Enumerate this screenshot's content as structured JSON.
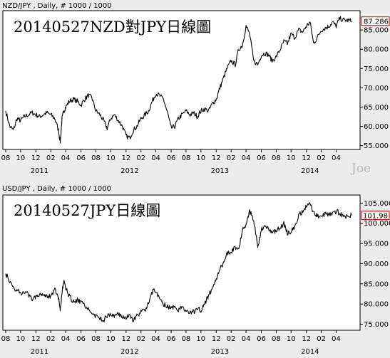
{
  "watermark": "Joe",
  "chart_data": [
    {
      "type": "line",
      "header": "NZD/JPY , Daily, # 1000 / 1000",
      "title": "20140527NZD對JPY日線圖",
      "last_value": "87.286",
      "last_color": "#cc0000",
      "ylim": [
        54,
        90
      ],
      "y_ticks": [
        55,
        60,
        65,
        70,
        75,
        80,
        85
      ],
      "y_tick_labels": [
        "55.000",
        "60.000",
        "65.000",
        "70.000",
        "75.000",
        "80.000",
        "85.000"
      ],
      "x_range": [
        2010.625,
        2014.46
      ],
      "month_ticks": [
        {
          "x": 2010.625,
          "label": "08"
        },
        {
          "x": 2010.79,
          "label": "10"
        },
        {
          "x": 2010.96,
          "label": "12"
        },
        {
          "x": 2011.125,
          "label": "02"
        },
        {
          "x": 2011.29,
          "label": "04"
        },
        {
          "x": 2011.46,
          "label": "06"
        },
        {
          "x": 2011.625,
          "label": "08"
        },
        {
          "x": 2011.79,
          "label": "10"
        },
        {
          "x": 2011.96,
          "label": "12"
        },
        {
          "x": 2012.125,
          "label": "02"
        },
        {
          "x": 2012.29,
          "label": "04"
        },
        {
          "x": 2012.46,
          "label": "06"
        },
        {
          "x": 2012.625,
          "label": "08"
        },
        {
          "x": 2012.79,
          "label": "10"
        },
        {
          "x": 2012.96,
          "label": "12"
        },
        {
          "x": 2013.125,
          "label": "02"
        },
        {
          "x": 2013.29,
          "label": "04"
        },
        {
          "x": 2013.46,
          "label": "06"
        },
        {
          "x": 2013.625,
          "label": "08"
        },
        {
          "x": 2013.79,
          "label": "10"
        },
        {
          "x": 2013.96,
          "label": "12"
        },
        {
          "x": 2014.125,
          "label": "02"
        },
        {
          "x": 2014.29,
          "label": "04"
        }
      ],
      "year_ticks": [
        {
          "x": 2011.0,
          "label": "2011"
        },
        {
          "x": 2012.0,
          "label": "2012"
        },
        {
          "x": 2013.0,
          "label": "2013"
        },
        {
          "x": 2014.0,
          "label": "2014"
        }
      ],
      "series": [
        {
          "x": [
            2010.625,
            2010.67,
            2010.71,
            2010.75,
            2010.79,
            2010.83,
            2010.875,
            2010.92,
            2010.96,
            2011.0,
            2011.04,
            2011.08,
            2011.125,
            2011.17,
            2011.21,
            2011.23,
            2011.25,
            2011.27,
            2011.29,
            2011.33,
            2011.375,
            2011.42,
            2011.46,
            2011.5,
            2011.54,
            2011.58,
            2011.625,
            2011.67,
            2011.71,
            2011.75,
            2011.79,
            2011.83,
            2011.875,
            2011.92,
            2011.96,
            2012.0,
            2012.04,
            2012.08,
            2012.125,
            2012.17,
            2012.21,
            2012.25,
            2012.29,
            2012.33,
            2012.375,
            2012.42,
            2012.46,
            2012.5,
            2012.54,
            2012.58,
            2012.625,
            2012.67,
            2012.71,
            2012.75,
            2012.79,
            2012.83,
            2012.875,
            2012.92,
            2012.96,
            2013.0,
            2013.04,
            2013.08,
            2013.125,
            2013.17,
            2013.21,
            2013.25,
            2013.29,
            2013.33,
            2013.375,
            2013.42,
            2013.46,
            2013.5,
            2013.54,
            2013.58,
            2013.625,
            2013.67,
            2013.71,
            2013.75,
            2013.79,
            2013.83,
            2013.875,
            2013.92,
            2013.96,
            2014.0,
            2014.04,
            2014.08,
            2014.125,
            2014.17,
            2014.21,
            2014.25,
            2014.29,
            2014.33,
            2014.375,
            2014.42,
            2014.46
          ],
          "y": [
            64,
            60,
            59,
            62,
            61.5,
            62.5,
            63,
            63.5,
            63,
            62.5,
            63,
            63.5,
            63,
            62,
            59,
            56,
            62,
            64,
            65,
            66.5,
            67,
            66.5,
            65.5,
            67,
            68,
            67.5,
            64,
            63,
            61.5,
            59.5,
            62,
            63,
            61.5,
            60,
            57.5,
            57,
            59,
            60,
            62,
            63,
            64,
            66.5,
            68.5,
            68,
            67,
            63.5,
            59.5,
            60,
            62,
            63,
            64,
            63,
            63.5,
            62.5,
            64,
            64.5,
            64,
            66,
            67,
            70,
            72.5,
            75,
            77,
            76,
            80,
            81,
            86,
            84,
            77,
            76,
            78.5,
            79,
            78.5,
            77,
            78,
            80,
            82,
            81.5,
            84,
            83,
            85,
            84.5,
            86,
            87,
            81.5,
            83,
            85,
            85.5,
            86,
            87,
            86,
            88,
            87.5,
            87.5,
            87.29
          ]
        }
      ]
    },
    {
      "type": "line",
      "header": "USD/JPY , Daily, # 1000 / 1000",
      "title": "20140527JPY日線圖",
      "last_value": "101.98",
      "last_color": "#cc0000",
      "ylim": [
        73.5,
        107
      ],
      "y_ticks": [
        75,
        80,
        85,
        90,
        95,
        100,
        105
      ],
      "y_tick_labels": [
        "75.000",
        "80.000",
        "85.000",
        "90.000",
        "95.000",
        "100.000",
        "105.000"
      ],
      "x_range": [
        2010.625,
        2014.46
      ],
      "month_ticks": [
        {
          "x": 2010.625,
          "label": "08"
        },
        {
          "x": 2010.79,
          "label": "10"
        },
        {
          "x": 2010.96,
          "label": "12"
        },
        {
          "x": 2011.125,
          "label": "02"
        },
        {
          "x": 2011.29,
          "label": "04"
        },
        {
          "x": 2011.46,
          "label": "06"
        },
        {
          "x": 2011.625,
          "label": "08"
        },
        {
          "x": 2011.79,
          "label": "10"
        },
        {
          "x": 2011.96,
          "label": "12"
        },
        {
          "x": 2012.125,
          "label": "02"
        },
        {
          "x": 2012.29,
          "label": "04"
        },
        {
          "x": 2012.46,
          "label": "06"
        },
        {
          "x": 2012.625,
          "label": "08"
        },
        {
          "x": 2012.79,
          "label": "10"
        },
        {
          "x": 2012.96,
          "label": "12"
        },
        {
          "x": 2013.125,
          "label": "02"
        },
        {
          "x": 2013.29,
          "label": "04"
        },
        {
          "x": 2013.46,
          "label": "06"
        },
        {
          "x": 2013.625,
          "label": "08"
        },
        {
          "x": 2013.79,
          "label": "10"
        },
        {
          "x": 2013.96,
          "label": "12"
        },
        {
          "x": 2014.125,
          "label": "02"
        },
        {
          "x": 2014.29,
          "label": "04"
        }
      ],
      "year_ticks": [
        {
          "x": 2011.0,
          "label": "2011"
        },
        {
          "x": 2012.0,
          "label": "2012"
        },
        {
          "x": 2013.0,
          "label": "2013"
        },
        {
          "x": 2014.0,
          "label": "2014"
        }
      ],
      "series": [
        {
          "x": [
            2010.625,
            2010.67,
            2010.71,
            2010.75,
            2010.79,
            2010.83,
            2010.875,
            2010.92,
            2010.96,
            2011.0,
            2011.04,
            2011.08,
            2011.125,
            2011.17,
            2011.21,
            2011.23,
            2011.25,
            2011.27,
            2011.29,
            2011.33,
            2011.375,
            2011.42,
            2011.46,
            2011.5,
            2011.54,
            2011.58,
            2011.625,
            2011.67,
            2011.71,
            2011.75,
            2011.79,
            2011.83,
            2011.875,
            2011.92,
            2011.96,
            2012.0,
            2012.04,
            2012.08,
            2012.125,
            2012.17,
            2012.21,
            2012.25,
            2012.29,
            2012.33,
            2012.375,
            2012.42,
            2012.46,
            2012.5,
            2012.54,
            2012.58,
            2012.625,
            2012.67,
            2012.71,
            2012.75,
            2012.79,
            2012.83,
            2012.875,
            2012.92,
            2012.96,
            2013.0,
            2013.04,
            2013.08,
            2013.125,
            2013.17,
            2013.21,
            2013.25,
            2013.29,
            2013.33,
            2013.375,
            2013.42,
            2013.46,
            2013.5,
            2013.54,
            2013.58,
            2013.625,
            2013.67,
            2013.71,
            2013.75,
            2013.79,
            2013.83,
            2013.875,
            2013.92,
            2013.96,
            2014.0,
            2014.04,
            2014.08,
            2014.125,
            2014.17,
            2014.21,
            2014.25,
            2014.29,
            2014.33,
            2014.375,
            2014.42,
            2014.46
          ],
          "y": [
            87.5,
            85.5,
            84,
            83.5,
            83,
            82.5,
            82.5,
            81,
            82,
            82.5,
            82.5,
            82,
            82,
            83.5,
            81.5,
            78,
            83,
            85.5,
            84,
            82,
            80.5,
            81,
            80.5,
            79.5,
            79,
            77.5,
            77,
            76.5,
            76,
            77,
            77.5,
            77,
            77.5,
            77,
            76.5,
            77,
            76,
            77,
            78,
            78.5,
            80,
            83,
            83.5,
            81,
            80,
            79.5,
            79,
            79.5,
            78.5,
            79,
            78.5,
            78,
            78,
            79,
            78.5,
            80,
            82,
            84,
            86,
            89,
            90,
            92.5,
            93,
            94,
            93.5,
            98.5,
            99.5,
            103,
            101,
            94,
            98.5,
            99,
            98.5,
            98,
            98,
            99,
            100,
            97.5,
            98,
            99,
            102,
            103,
            104,
            105,
            102.5,
            102,
            101.5,
            102.5,
            102,
            102.5,
            103,
            102.5,
            101.5,
            102,
            101.98
          ]
        }
      ]
    }
  ]
}
